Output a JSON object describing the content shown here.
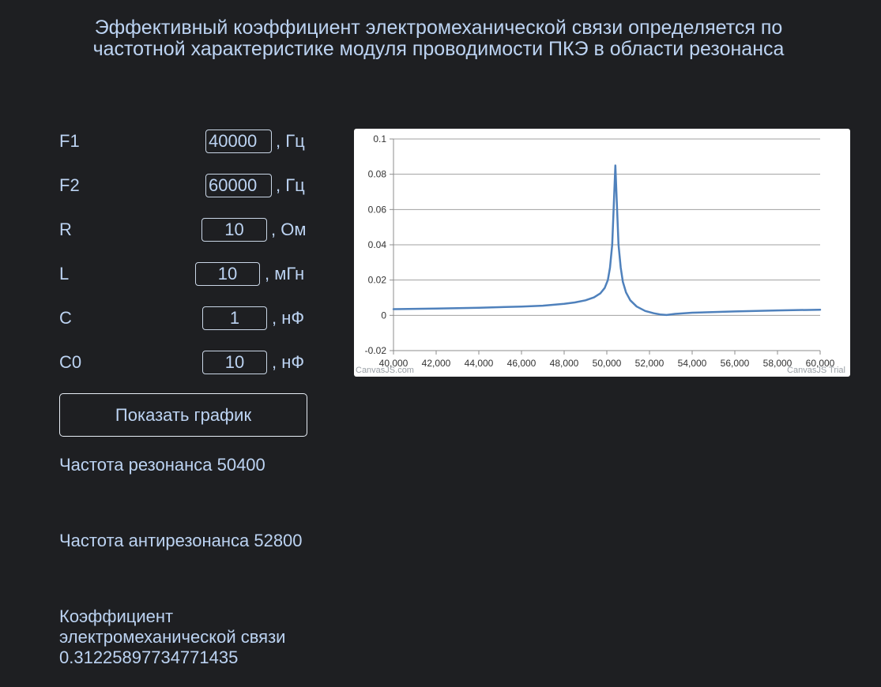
{
  "title_line1": "Эффективный коэффициент электромеханической связи определяется по",
  "title_line2": "частотной характеристике модуля проводимости ПКЭ в области резонанса",
  "params": [
    {
      "label": "F1",
      "value": "40000",
      "unit": ", Гц"
    },
    {
      "label": "F2",
      "value": "60000",
      "unit": ", Гц"
    },
    {
      "label": "R",
      "value": "10",
      "unit": ", Ом"
    },
    {
      "label": "L",
      "value": "10",
      "unit": ", мГн"
    },
    {
      "label": "C",
      "value": "1",
      "unit": ", нФ"
    },
    {
      "label": "C0",
      "value": "10",
      "unit": ", нФ"
    }
  ],
  "show_button_label": "Показать график",
  "results": {
    "resonance": "Частота резонанса 50400",
    "antiresonance": "Частота антирезонанса 52800",
    "coupling_line1": "Коэффициент",
    "coupling_line2": "электромеханической связи",
    "coupling_value": "0.31225897734771435"
  },
  "chart_credits": {
    "left": "CanvasJS.com",
    "right": "CanvasJS Trial"
  },
  "chart_data": {
    "type": "line",
    "title": "",
    "xlabel": "",
    "ylabel": "",
    "xlim": [
      40000,
      60000
    ],
    "ylim": [
      -0.02,
      0.1
    ],
    "x_ticks": [
      40000,
      42000,
      44000,
      46000,
      48000,
      50000,
      52000,
      54000,
      56000,
      58000,
      60000
    ],
    "x_tick_labels": [
      "40,000",
      "42,000",
      "44,000",
      "46,000",
      "48,000",
      "50,000",
      "52,000",
      "54,000",
      "56,000",
      "58,000",
      "60,000"
    ],
    "y_ticks": [
      -0.02,
      0,
      0.02,
      0.04,
      0.06,
      0.08,
      0.1
    ],
    "y_tick_labels": [
      "-0.02",
      "0",
      "0.02",
      "0.04",
      "0.06",
      "0.08",
      "0.1"
    ],
    "grid": true,
    "line_color": "#4f81bc",
    "series": [
      {
        "x": [
          40000,
          42000,
          44000,
          46000,
          47000,
          48000,
          48500,
          49000,
          49400,
          49700,
          49900,
          50050,
          50150,
          50250,
          50320,
          50400,
          50480,
          50550,
          50650,
          50750,
          50900,
          51100,
          51400,
          51800,
          52200,
          52500,
          52800,
          53200,
          54000,
          56000,
          58000,
          60000
        ],
        "y": [
          0.0035,
          0.0038,
          0.0043,
          0.005,
          0.0055,
          0.0065,
          0.0073,
          0.0085,
          0.0102,
          0.0125,
          0.0155,
          0.02,
          0.027,
          0.04,
          0.06,
          0.085,
          0.06,
          0.04,
          0.027,
          0.019,
          0.013,
          0.0085,
          0.005,
          0.0025,
          0.0012,
          0.0005,
          0.0002,
          0.0008,
          0.0015,
          0.0022,
          0.0028,
          0.0032
        ]
      }
    ]
  }
}
